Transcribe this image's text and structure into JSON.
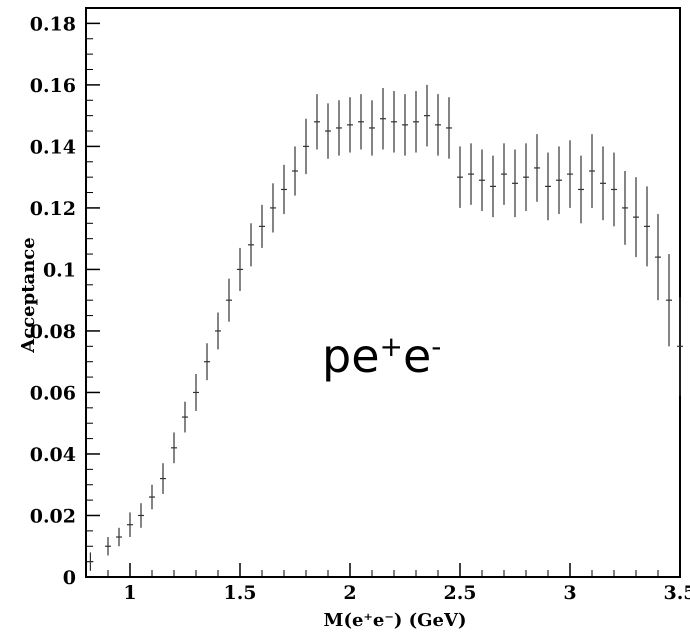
{
  "chart_data": {
    "type": "scatter",
    "title": "",
    "xlabel": "M(e⁺e⁻) (GeV)",
    "ylabel": "Acceptance",
    "xlim": [
      0.8,
      3.5
    ],
    "ylim": [
      0,
      0.185
    ],
    "x_ticks": [
      1,
      1.5,
      2,
      2.5,
      3,
      3.5
    ],
    "x_tick_labels": [
      "1",
      "1.5",
      "2",
      "2.5",
      "3",
      "3.5"
    ],
    "y_ticks": [
      0,
      0.02,
      0.04,
      0.06,
      0.08,
      0.1,
      0.12,
      0.14,
      0.16,
      0.18
    ],
    "y_tick_labels": [
      "0",
      "0.02",
      "0.04",
      "0.06",
      "0.08",
      "0.1",
      "0.12",
      "0.14",
      "0.16",
      "0.18"
    ],
    "grid": false,
    "marker_color": "#333333",
    "annotation": {
      "base": "pe",
      "sup1": "+",
      "mid": "e",
      "sup2": "-"
    },
    "series": [
      {
        "x": [
          0.82,
          0.9,
          0.95,
          1.0,
          1.05,
          1.1,
          1.15,
          1.2,
          1.25,
          1.3,
          1.35,
          1.4,
          1.45,
          1.5,
          1.55,
          1.6,
          1.65,
          1.7,
          1.75,
          1.8,
          1.85,
          1.9,
          1.95,
          2.0,
          2.05,
          2.1,
          2.15,
          2.2,
          2.25,
          2.3,
          2.35,
          2.4,
          2.45,
          2.5,
          2.55,
          2.6,
          2.65,
          2.7,
          2.75,
          2.8,
          2.85,
          2.9,
          2.95,
          3.0,
          3.05,
          3.1,
          3.15,
          3.2,
          3.25,
          3.3,
          3.35,
          3.4,
          3.45,
          3.5
        ],
        "y": [
          0.005,
          0.01,
          0.013,
          0.017,
          0.02,
          0.026,
          0.032,
          0.042,
          0.052,
          0.06,
          0.07,
          0.08,
          0.09,
          0.1,
          0.108,
          0.114,
          0.12,
          0.126,
          0.132,
          0.14,
          0.148,
          0.145,
          0.146,
          0.147,
          0.148,
          0.146,
          0.149,
          0.148,
          0.147,
          0.148,
          0.15,
          0.147,
          0.146,
          0.13,
          0.131,
          0.129,
          0.127,
          0.131,
          0.128,
          0.13,
          0.133,
          0.127,
          0.129,
          0.131,
          0.126,
          0.132,
          0.128,
          0.126,
          0.12,
          0.117,
          0.114,
          0.104,
          0.09,
          0.075
        ],
        "err": [
          0.003,
          0.003,
          0.003,
          0.004,
          0.004,
          0.004,
          0.005,
          0.005,
          0.005,
          0.006,
          0.006,
          0.006,
          0.007,
          0.007,
          0.007,
          0.007,
          0.008,
          0.008,
          0.008,
          0.009,
          0.009,
          0.009,
          0.009,
          0.009,
          0.009,
          0.009,
          0.01,
          0.01,
          0.01,
          0.01,
          0.01,
          0.01,
          0.01,
          0.01,
          0.01,
          0.01,
          0.01,
          0.01,
          0.011,
          0.011,
          0.011,
          0.011,
          0.011,
          0.011,
          0.011,
          0.012,
          0.012,
          0.012,
          0.012,
          0.013,
          0.013,
          0.014,
          0.015,
          0.016
        ]
      }
    ]
  }
}
